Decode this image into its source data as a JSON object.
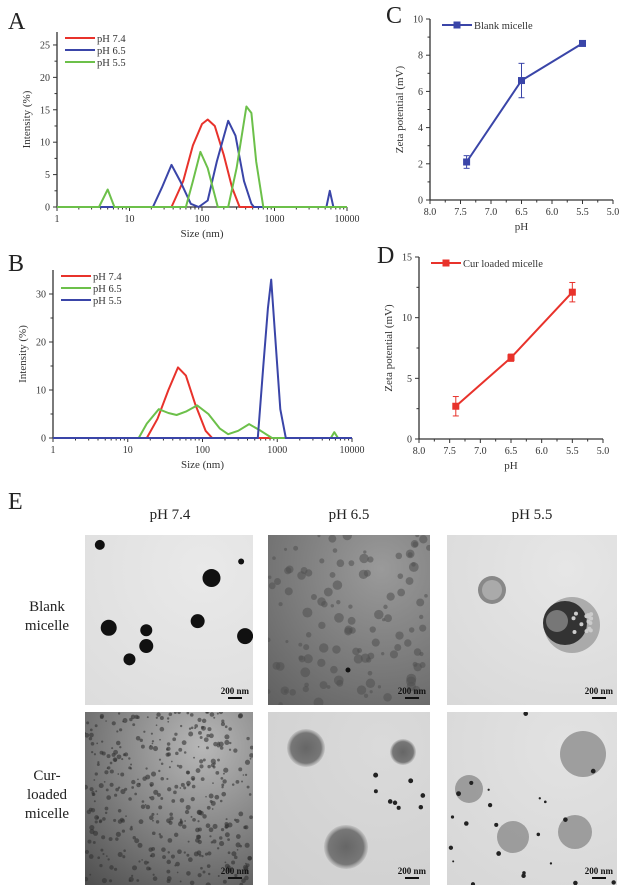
{
  "panel_labels": {
    "a": "A",
    "b": "B",
    "c": "C",
    "d": "D",
    "e": "E"
  },
  "chart_data": [
    {
      "id": "A",
      "type": "line",
      "xscale": "log",
      "xlabel": "Size (nm)",
      "ylabel": "Intensity (%)",
      "xlim": [
        1,
        10000
      ],
      "ylim": [
        0,
        27
      ],
      "xticks": [
        "1",
        "10",
        "100",
        "1000",
        "10000"
      ],
      "yticks": [
        0,
        5,
        10,
        15,
        20,
        25
      ],
      "legend": "top-left",
      "series": [
        {
          "name": "pH 7.4",
          "color": "#e8322b",
          "points": [
            [
              1,
              0
            ],
            [
              38,
              0
            ],
            [
              55,
              4
            ],
            [
              75,
              9.5
            ],
            [
              100,
              12.8
            ],
            [
              120,
              13.5
            ],
            [
              150,
              12.5
            ],
            [
              200,
              8
            ],
            [
              260,
              3
            ],
            [
              330,
              0
            ],
            [
              10000,
              0
            ]
          ]
        },
        {
          "name": "pH 6.5",
          "color": "#3a45a8",
          "points": [
            [
              1,
              0
            ],
            [
              21,
              0
            ],
            [
              28,
              3
            ],
            [
              38,
              6.5
            ],
            [
              50,
              4
            ],
            [
              70,
              0.5
            ],
            [
              90,
              0
            ],
            [
              120,
              1
            ],
            [
              160,
              7
            ],
            [
              230,
              13.3
            ],
            [
              290,
              11
            ],
            [
              380,
              4
            ],
            [
              480,
              0.5
            ],
            [
              520,
              0
            ],
            [
              5200,
              0
            ],
            [
              5800,
              2.5
            ],
            [
              6500,
              0
            ],
            [
              10000,
              0
            ]
          ]
        },
        {
          "name": "pH 5.5",
          "color": "#6cc04a",
          "points": [
            [
              1,
              0
            ],
            [
              3.8,
              0
            ],
            [
              5,
              2.7
            ],
            [
              6.2,
              0
            ],
            [
              60,
              0
            ],
            [
              75,
              4
            ],
            [
              95,
              8.5
            ],
            [
              120,
              6
            ],
            [
              165,
              0
            ],
            [
              230,
              0
            ],
            [
              300,
              6
            ],
            [
              410,
              15.5
            ],
            [
              480,
              14.5
            ],
            [
              560,
              7
            ],
            [
              700,
              0
            ],
            [
              10000,
              0
            ]
          ]
        }
      ]
    },
    {
      "id": "B",
      "type": "line",
      "xscale": "log",
      "xlabel": "Size (nm)",
      "ylabel": "Intensity (%)",
      "xlim": [
        1,
        10000
      ],
      "ylim": [
        0,
        35
      ],
      "xticks": [
        "1",
        "10",
        "100",
        "1000",
        "10000"
      ],
      "yticks": [
        0,
        10,
        20,
        30
      ],
      "legend": "top-left",
      "series": [
        {
          "name": "pH 7.4",
          "color": "#e8322b",
          "points": [
            [
              1,
              0
            ],
            [
              18,
              0
            ],
            [
              25,
              4
            ],
            [
              35,
              10
            ],
            [
              47,
              14.7
            ],
            [
              60,
              13
            ],
            [
              80,
              7
            ],
            [
              110,
              1.5
            ],
            [
              135,
              0
            ],
            [
              10000,
              0
            ]
          ]
        },
        {
          "name": "pH 6.5",
          "color": "#6cc04a",
          "points": [
            [
              1,
              0
            ],
            [
              14,
              0
            ],
            [
              18,
              3
            ],
            [
              26,
              6
            ],
            [
              35,
              5.2
            ],
            [
              45,
              4.8
            ],
            [
              60,
              5.5
            ],
            [
              85,
              6.8
            ],
            [
              120,
              5
            ],
            [
              170,
              2
            ],
            [
              220,
              0.8
            ],
            [
              300,
              1.5
            ],
            [
              420,
              2.9
            ],
            [
              600,
              1.5
            ],
            [
              850,
              0
            ],
            [
              5200,
              0
            ],
            [
              5800,
              1.2
            ],
            [
              6500,
              0
            ],
            [
              10000,
              0
            ]
          ]
        },
        {
          "name": "pH 5.5",
          "color": "#3a45a8",
          "points": [
            [
              1,
              0
            ],
            [
              550,
              0
            ],
            [
              650,
              15
            ],
            [
              750,
              27
            ],
            [
              830,
              33
            ],
            [
              930,
              22
            ],
            [
              1100,
              6
            ],
            [
              1300,
              0
            ],
            [
              10000,
              0
            ]
          ]
        }
      ]
    },
    {
      "id": "C",
      "type": "line",
      "xlabel": "pH",
      "ylabel": "Zeta potential (mV)",
      "xlim": [
        8.0,
        5.0
      ],
      "ylim": [
        0,
        10
      ],
      "xticks": [
        "8.0",
        "7.5",
        "7.0",
        "6.5",
        "6.0",
        "5.5",
        "5.0"
      ],
      "yticks": [
        0,
        2,
        4,
        6,
        8,
        10
      ],
      "legend": "top-left",
      "series": [
        {
          "name": "Blank micelle",
          "color": "#3a45a8",
          "x": [
            7.4,
            6.5,
            5.5
          ],
          "y": [
            2.1,
            6.6,
            8.65
          ],
          "error": [
            0.35,
            0.95,
            0.15
          ]
        }
      ]
    },
    {
      "id": "D",
      "type": "line",
      "xlabel": "pH",
      "ylabel": "Zeta potential (mV)",
      "xlim": [
        8.0,
        5.0
      ],
      "ylim": [
        0,
        15
      ],
      "xticks": [
        "8.0",
        "7.5",
        "7.0",
        "6.5",
        "6.0",
        "5.5",
        "5.0"
      ],
      "yticks": [
        0,
        5,
        10,
        15
      ],
      "legend": "top-left",
      "series": [
        {
          "name": "Cur loaded micelle",
          "color": "#e8322b",
          "x": [
            7.4,
            6.5,
            5.5
          ],
          "y": [
            2.7,
            6.7,
            12.1
          ],
          "error": [
            0.8,
            0.3,
            0.8
          ]
        }
      ]
    }
  ],
  "tem": {
    "columns": [
      "pH 7.4",
      "pH 6.5",
      "pH 5.5"
    ],
    "rows": [
      {
        "label": "Blank\nmicelle"
      },
      {
        "label": "Cur-\nloaded\nmicelle"
      }
    ],
    "scale_bar": "200 nm"
  }
}
